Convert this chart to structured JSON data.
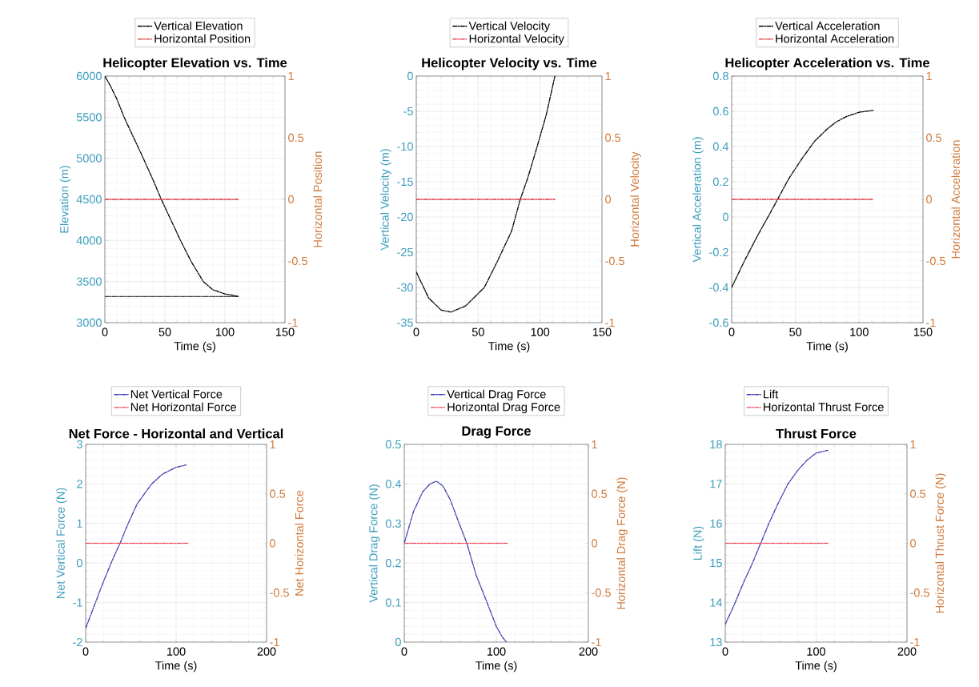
{
  "chart_data": [
    {
      "type": "line",
      "title": "Helicopter Elevation vs. Time",
      "xlabel": "Time (s)",
      "ylabel": "Elevation (m)",
      "y2label": "Horizontal Position",
      "xlim": [
        0,
        150
      ],
      "xticks": [
        0,
        50,
        100,
        150
      ],
      "ylim": [
        3000,
        6000
      ],
      "yticks": [
        3000,
        3500,
        4000,
        4500,
        5000,
        5500,
        6000
      ],
      "y2lim": [
        -1,
        1
      ],
      "y2ticks": [
        -1,
        -0.5,
        0,
        0.5,
        1
      ],
      "grid": true,
      "legend": "top",
      "line_style": "dashdot",
      "series": [
        {
          "name": "Vertical Elevation",
          "color": "#000000",
          "x": [
            0,
            5,
            10,
            16,
            24,
            32,
            40,
            47,
            55,
            63,
            72,
            82,
            90,
            100,
            111
          ],
          "values": [
            6000,
            5870,
            5720,
            5500,
            5250,
            5000,
            4740,
            4500,
            4250,
            4000,
            3740,
            3500,
            3400,
            3350,
            3320
          ]
        },
        {
          "name": "Horizontal Position",
          "color": "#e0303f",
          "axis": "y2",
          "x": [
            0,
            111
          ],
          "values": [
            0,
            0
          ]
        },
        {
          "color": "#000000",
          "x": [
            0,
            111
          ],
          "values": [
            3320,
            3320
          ]
        }
      ]
    },
    {
      "type": "line",
      "title": "Helicopter Velocity vs. Time",
      "xlabel": "Time (s)",
      "ylabel": "Vertical Velocity (m)",
      "y2label": "Horizontal Velocity",
      "xlim": [
        0,
        150
      ],
      "xticks": [
        0,
        50,
        100,
        150
      ],
      "ylim": [
        -35,
        0
      ],
      "yticks": [
        -35,
        -30,
        -25,
        -20,
        -15,
        -10,
        -5,
        0
      ],
      "y2lim": [
        -1,
        1
      ],
      "y2ticks": [
        -1,
        -0.5,
        0,
        0.5,
        1
      ],
      "grid": true,
      "legend": "top",
      "line_style": "dashdot",
      "series": [
        {
          "name": "Vertical Velocity",
          "color": "#000000",
          "x": [
            0,
            10,
            20,
            28,
            40,
            55,
            65,
            77,
            84,
            90,
            96,
            105,
            112
          ],
          "values": [
            -27.8,
            -31.5,
            -33.2,
            -33.5,
            -32.6,
            -30,
            -26.5,
            -22,
            -17.5,
            -14.5,
            -11,
            -5.5,
            0
          ]
        },
        {
          "name": "Horizontal Velocity",
          "color": "#e0303f",
          "axis": "y2",
          "x": [
            0,
            112
          ],
          "values": [
            0,
            0
          ]
        }
      ]
    },
    {
      "type": "line",
      "title": "Helicopter Acceleration vs. Time",
      "xlabel": "Time (s)",
      "ylabel": "Vertical Acceleration (m)",
      "y2label": "Horizontal Acceleration",
      "xlim": [
        0,
        150
      ],
      "xticks": [
        0,
        50,
        100,
        150
      ],
      "ylim": [
        -0.6,
        0.8
      ],
      "yticks": [
        -0.6,
        -0.4,
        -0.2,
        0,
        0.2,
        0.4,
        0.6,
        0.8
      ],
      "y2lim": [
        -1,
        1
      ],
      "y2ticks": [
        -1,
        -0.5,
        0,
        0.5,
        1
      ],
      "grid": true,
      "legend": "top",
      "line_style": "dashdot",
      "series": [
        {
          "name": "Vertical Acceleration",
          "color": "#000000",
          "x": [
            0,
            10,
            20,
            30,
            36,
            45,
            55,
            65,
            75,
            82,
            90,
            100,
            111
          ],
          "values": [
            -0.4,
            -0.25,
            -0.11,
            0.02,
            0.1,
            0.22,
            0.33,
            0.43,
            0.5,
            0.54,
            0.57,
            0.595,
            0.605
          ]
        },
        {
          "name": "Horizontal Acceleration",
          "color": "#e0303f",
          "axis": "y2",
          "x": [
            0,
            111
          ],
          "values": [
            0,
            0
          ]
        }
      ]
    },
    {
      "type": "line",
      "title": "Net Force - Horizontal and Vertical",
      "xlabel": "Time (s)",
      "ylabel": "Net Vertical Force (N)",
      "y2label": "Net Horizontal Force",
      "xlim": [
        0,
        200
      ],
      "xticks": [
        0,
        100,
        200
      ],
      "ylim": [
        -2,
        3
      ],
      "yticks": [
        -2,
        -1,
        0,
        1,
        2,
        3
      ],
      "y2lim": [
        -1,
        1
      ],
      "y2ticks": [
        -1,
        -0.5,
        0,
        0.5,
        1
      ],
      "grid": true,
      "legend": "top",
      "line_style": "dashdot",
      "series": [
        {
          "name": "Net Vertical Force",
          "color": "#3a3ab0",
          "x": [
            0,
            10,
            20,
            30,
            38,
            47,
            57,
            65,
            73,
            85,
            100,
            111
          ],
          "values": [
            -1.65,
            -1.05,
            -0.45,
            0.1,
            0.5,
            1.0,
            1.5,
            1.75,
            2.0,
            2.25,
            2.42,
            2.48
          ]
        },
        {
          "name": "Net Horizontal Force",
          "color": "#f04050",
          "axis": "y2",
          "x": [
            0,
            113
          ],
          "values": [
            0,
            0
          ]
        }
      ]
    },
    {
      "type": "line",
      "title": "Drag Force",
      "xlabel": "Time (s)",
      "ylabel": "Vertical Drag Force (N)",
      "y2label": "Horizontal Drag Force (N)",
      "xlim": [
        0,
        200
      ],
      "xticks": [
        0,
        100,
        200
      ],
      "ylim": [
        0,
        0.5
      ],
      "yticks": [
        0,
        0.1,
        0.2,
        0.3,
        0.4,
        0.5
      ],
      "y2lim": [
        -1,
        1
      ],
      "y2ticks": [
        -1,
        -0.5,
        0,
        0.5,
        1
      ],
      "grid": true,
      "legend": "top",
      "line_style": "dashdot",
      "series": [
        {
          "name": "Vertical Drag Force",
          "color": "#3a3ab0",
          "x": [
            0,
            5,
            10,
            20,
            28,
            35,
            42,
            50,
            58,
            68,
            78,
            90,
            100,
            106,
            111
          ],
          "values": [
            0.25,
            0.29,
            0.33,
            0.38,
            0.4,
            0.407,
            0.395,
            0.36,
            0.31,
            0.25,
            0.17,
            0.1,
            0.04,
            0.015,
            0
          ]
        },
        {
          "name": "Horizontal Drag Force",
          "color": "#f04050",
          "axis": "y2",
          "x": [
            0,
            113
          ],
          "values": [
            0,
            0
          ]
        }
      ]
    },
    {
      "type": "line",
      "title": "Thrust Force",
      "xlabel": "Time (s)",
      "ylabel": "Lift (N)",
      "y2label": "Horizontal Thrust Force (N)",
      "xlim": [
        0,
        200
      ],
      "xticks": [
        0,
        100,
        200
      ],
      "ylim": [
        13,
        18
      ],
      "yticks": [
        13,
        14,
        15,
        16,
        17,
        18
      ],
      "y2lim": [
        -1,
        1
      ],
      "y2ticks": [
        -1,
        -0.5,
        0,
        0.5,
        1
      ],
      "grid": true,
      "legend": "top",
      "line_style": "dashdot",
      "series": [
        {
          "name": "Lift",
          "color": "#3a3ab0",
          "x": [
            0,
            10,
            20,
            30,
            39,
            48,
            58,
            69,
            80,
            90,
            100,
            113
          ],
          "values": [
            13.45,
            13.95,
            14.5,
            15.0,
            15.5,
            16.0,
            16.5,
            17.0,
            17.35,
            17.6,
            17.78,
            17.85
          ]
        },
        {
          "name": "Horizontal Thrust Force",
          "color": "#f04050",
          "axis": "y2",
          "x": [
            0,
            113
          ],
          "values": [
            0,
            0
          ]
        }
      ]
    }
  ]
}
